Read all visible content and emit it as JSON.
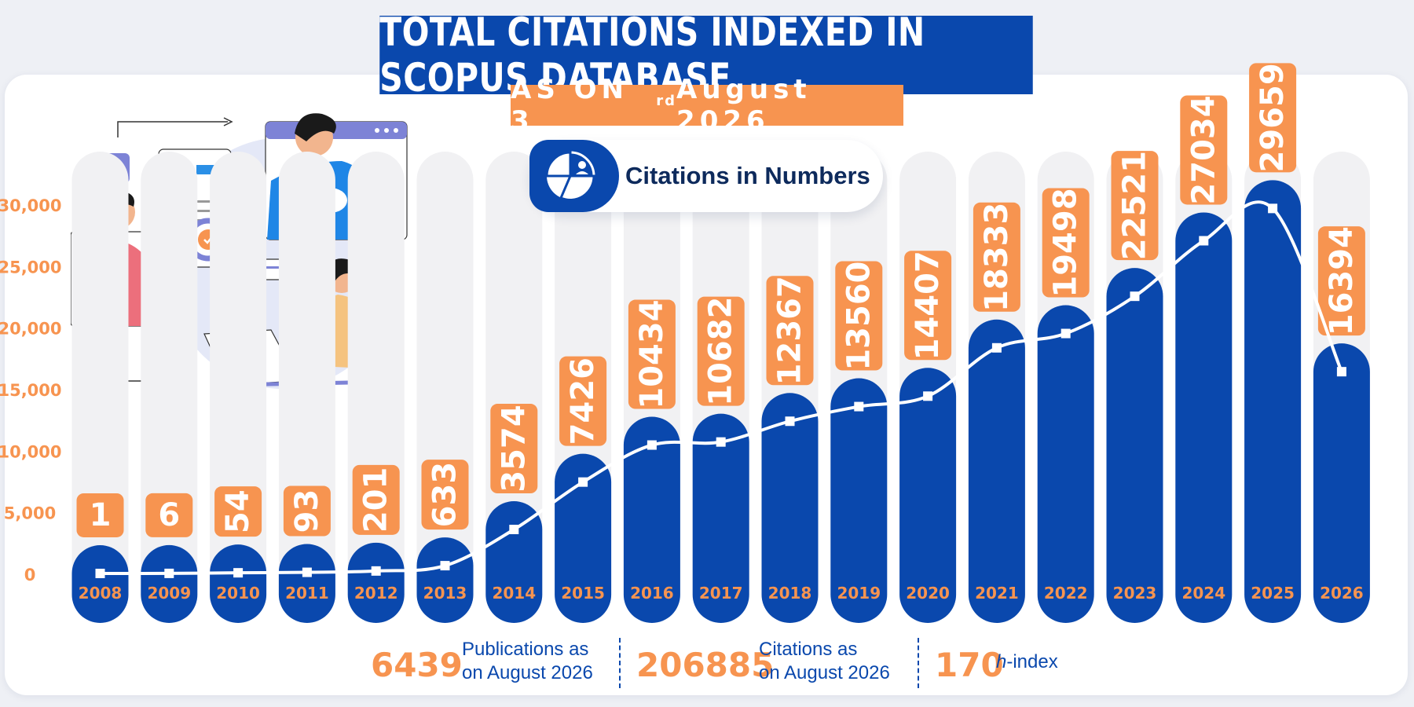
{
  "header": {
    "title": "TOTAL CITATIONS INDEXED IN SCOPUS DATABASE",
    "subtitle_pre": "AS ON 3",
    "subtitle_sup": "rd",
    "subtitle_post": " August 2026",
    "badge_label": "Citations in Numbers",
    "badge_icon": "pie-chart-user-icon"
  },
  "colors": {
    "primary": "#0a48ad",
    "accent": "#f79450",
    "track": "#f1f1f3",
    "line": "#ffffff"
  },
  "chart_data": {
    "type": "bar",
    "categories": [
      "2008",
      "2009",
      "2010",
      "2011",
      "2012",
      "2013",
      "2014",
      "2015",
      "2016",
      "2017",
      "2018",
      "2019",
      "2020",
      "2021",
      "2022",
      "2023",
      "2024",
      "2025",
      "2026"
    ],
    "values": [
      1,
      6,
      54,
      93,
      201,
      633,
      3574,
      7426,
      10434,
      10682,
      12367,
      13560,
      14407,
      18333,
      19498,
      22521,
      27034,
      29659,
      16394
    ],
    "data_labels": [
      "1",
      "6",
      "54",
      "93",
      "201",
      "633",
      "3574",
      "7426",
      "10434",
      "10682",
      "12367",
      "13560",
      "14407",
      "18333",
      "19498",
      "22521",
      "27034",
      "29659",
      "16394"
    ],
    "y_ticks": [
      0,
      5000,
      10000,
      15000,
      20000,
      25000,
      30000
    ],
    "y_tick_labels": [
      "0",
      "5,000",
      "10,000",
      "15,000",
      "20,000",
      "25,000",
      "30,000"
    ],
    "ylim": [
      0,
      30000
    ],
    "overlay": "line",
    "grid": false,
    "legend": "none"
  },
  "stats": [
    {
      "value": "6439",
      "label_line1": "Publications as",
      "label_line2": "on August 2026"
    },
    {
      "value": "206885",
      "label_line1": "Citations as",
      "label_line2": "on August 2026"
    },
    {
      "value": "170",
      "label_h": "h",
      "label_rest": "-index"
    }
  ]
}
